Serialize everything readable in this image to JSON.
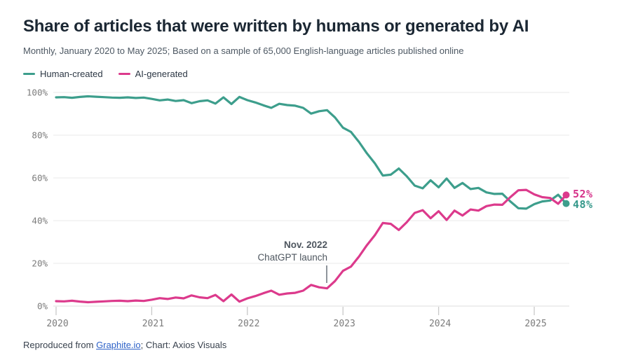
{
  "header": {
    "title": "Share of articles that were written by humans or generated by AI",
    "subtitle": "Monthly, January 2020 to May 2025; Based on a sample of 65,000 English-language articles published online"
  },
  "legend": [
    {
      "label": "Human-created",
      "color": "#3d9e8c"
    },
    {
      "label": "AI-generated",
      "color": "#dc3a8c"
    }
  ],
  "annotation": {
    "line1": "Nov. 2022",
    "line2": "ChatGPT launch"
  },
  "end_labels": [
    {
      "text": "52%",
      "color": "#d6338a"
    },
    {
      "text": "48%",
      "color": "#35988a"
    }
  ],
  "footer": {
    "prefix": "Reproduced from ",
    "link_text": "Graphite.io",
    "suffix": "; Chart: Axios Visuals"
  },
  "chart_data": {
    "type": "line",
    "title": "Share of articles that were written by humans or generated by AI",
    "x_start": "2020-01",
    "x_end": "2025-05",
    "interval": "monthly",
    "points_per_series": 65,
    "ylim": [
      0,
      100
    ],
    "grid": "horizontal",
    "legend_position": "top-left",
    "x_tick_labels": [
      "2020",
      "2021",
      "2022",
      "2023",
      "2024",
      "2025"
    ],
    "y_ticks": [
      {
        "value": 0,
        "label": "0%"
      },
      {
        "value": 20,
        "label": "20%"
      },
      {
        "value": 40,
        "label": "40%"
      },
      {
        "value": 60,
        "label": "60%"
      },
      {
        "value": 80,
        "label": "80%"
      },
      {
        "value": 100,
        "label": "100%"
      }
    ],
    "series": [
      {
        "name": "Human-created",
        "color": "#3d9e8c",
        "end_value_label": "48%",
        "values": [
          97.7,
          97.8,
          97.5,
          97.9,
          98.2,
          98.0,
          97.8,
          97.6,
          97.5,
          97.7,
          97.4,
          97.6,
          97.0,
          96.3,
          96.7,
          96.0,
          96.4,
          95.0,
          95.9,
          96.3,
          94.8,
          97.7,
          94.6,
          97.9,
          96.4,
          95.3,
          94.0,
          92.8,
          94.7,
          94.1,
          93.8,
          92.8,
          90.1,
          91.2,
          91.7,
          88.3,
          83.5,
          81.5,
          76.9,
          71.5,
          66.8,
          61.1,
          61.5,
          64.4,
          60.8,
          56.4,
          55.1,
          58.9,
          55.6,
          59.7,
          55.3,
          57.6,
          54.8,
          55.3,
          53.2,
          52.5,
          52.6,
          49.0,
          45.8,
          45.6,
          47.7,
          49.0,
          49.4,
          52.1,
          48.0
        ]
      },
      {
        "name": "AI-generated",
        "color": "#dc3a8c",
        "end_value_label": "52%",
        "values": [
          2.3,
          2.2,
          2.5,
          2.1,
          1.8,
          2.0,
          2.2,
          2.4,
          2.5,
          2.3,
          2.6,
          2.4,
          3.0,
          3.7,
          3.3,
          4.0,
          3.6,
          5.0,
          4.1,
          3.7,
          5.2,
          2.3,
          5.4,
          2.1,
          3.6,
          4.7,
          6.0,
          7.2,
          5.3,
          5.9,
          6.2,
          7.2,
          9.9,
          8.8,
          8.3,
          11.7,
          16.5,
          18.5,
          23.1,
          28.5,
          33.2,
          38.9,
          38.5,
          35.6,
          39.2,
          43.6,
          44.9,
          41.1,
          44.4,
          40.3,
          44.7,
          42.4,
          45.2,
          44.7,
          46.8,
          47.5,
          47.4,
          51.0,
          54.2,
          54.4,
          52.3,
          51.0,
          50.6,
          47.9,
          52.0
        ]
      }
    ],
    "annotation": {
      "text": "Nov. 2022 ChatGPT launch",
      "x": "2022-11",
      "series": "AI-generated"
    }
  }
}
